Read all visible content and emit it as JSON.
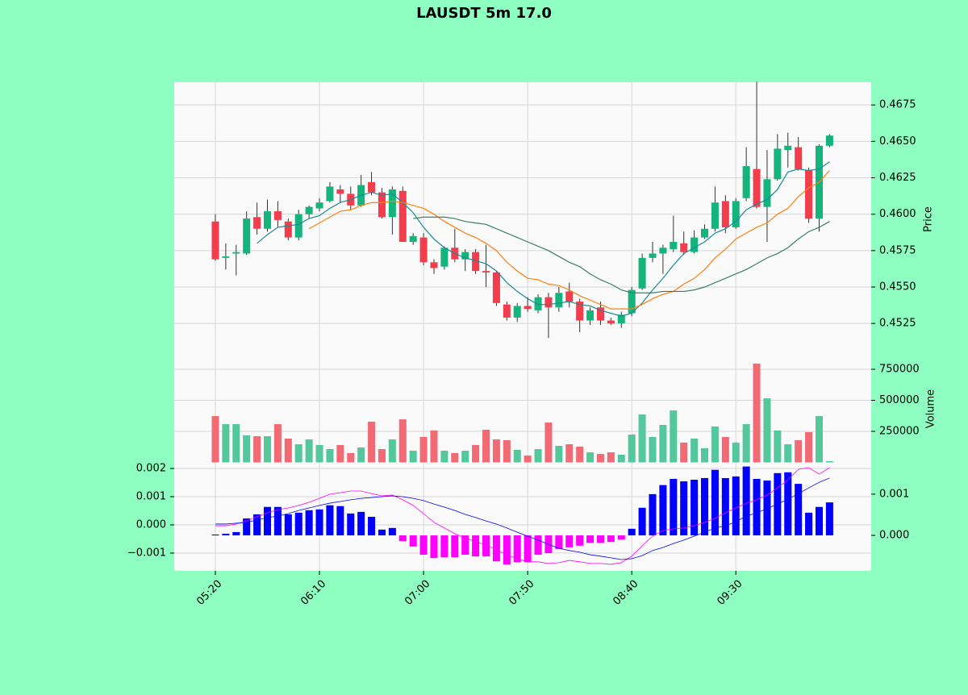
{
  "chart_data": [
    {
      "type": "candlestick",
      "title": "LAUSDT 5m 17.0",
      "ylabel": "Price",
      "categories": [
        "05:20",
        null,
        null,
        null,
        null,
        null,
        null,
        null,
        null,
        null,
        "06:10",
        null,
        null,
        null,
        null,
        null,
        null,
        null,
        null,
        null,
        "07:00",
        null,
        null,
        null,
        null,
        null,
        null,
        null,
        null,
        null,
        "07:50",
        null,
        null,
        null,
        null,
        null,
        null,
        null,
        null,
        null,
        "08:40",
        null,
        null,
        null,
        null,
        null,
        null,
        null,
        null,
        null,
        "09:30",
        null,
        null,
        null,
        null,
        null,
        null,
        null,
        null,
        null
      ],
      "xlim": [
        -3.95,
        63
      ],
      "open": [
        0.4595,
        0.457,
        0.4573,
        0.4573,
        0.4598,
        0.459,
        0.4602,
        0.4595,
        0.4584,
        0.46,
        0.4604,
        0.4609,
        0.4617,
        0.4614,
        0.4606,
        0.4622,
        0.4615,
        0.4598,
        0.4616,
        0.4581,
        0.4584,
        0.4567,
        0.4564,
        0.4577,
        0.4569,
        0.4574,
        0.4561,
        0.456,
        0.4538,
        0.4529,
        0.4537,
        0.4534,
        0.4543,
        0.4536,
        0.4547,
        0.454,
        0.4527,
        0.4536,
        0.4527,
        0.4525,
        0.4532,
        0.4549,
        0.457,
        0.4573,
        0.4576,
        0.458,
        0.4574,
        0.4584,
        0.459,
        0.4609,
        0.4591,
        0.4611,
        0.4631,
        0.4605,
        0.4624,
        0.4644,
        0.4646,
        0.463,
        0.4597,
        0.4647
      ],
      "high": [
        0.46,
        0.458,
        0.4579,
        0.4602,
        0.4608,
        0.461,
        0.4609,
        0.4597,
        0.4603,
        0.4606,
        0.4611,
        0.4622,
        0.462,
        0.4619,
        0.4627,
        0.4629,
        0.4618,
        0.4619,
        0.4619,
        0.4587,
        0.4587,
        0.4569,
        0.4578,
        0.459,
        0.4576,
        0.4576,
        0.4579,
        0.4561,
        0.454,
        0.4539,
        0.4543,
        0.4545,
        0.4546,
        0.455,
        0.4553,
        0.4542,
        0.4536,
        0.454,
        0.4529,
        0.4533,
        0.455,
        0.4573,
        0.4581,
        0.4579,
        0.4599,
        0.4588,
        0.4589,
        0.4593,
        0.4619,
        0.4613,
        0.4611,
        0.4646,
        0.4691,
        0.4644,
        0.4655,
        0.4656,
        0.4653,
        0.4632,
        0.4648,
        0.4655
      ],
      "low": [
        0.4568,
        0.4562,
        0.4558,
        0.4572,
        0.4586,
        0.4588,
        0.4591,
        0.4582,
        0.4582,
        0.4597,
        0.4602,
        0.4608,
        0.4608,
        0.4603,
        0.4605,
        0.4613,
        0.4597,
        0.4586,
        0.4581,
        0.4579,
        0.4565,
        0.4559,
        0.4562,
        0.4567,
        0.4561,
        0.4559,
        0.455,
        0.4537,
        0.4527,
        0.4526,
        0.4533,
        0.4532,
        0.4515,
        0.4533,
        0.4536,
        0.4519,
        0.4524,
        0.4524,
        0.4524,
        0.4522,
        0.453,
        0.4548,
        0.4567,
        0.4559,
        0.4574,
        0.4572,
        0.4573,
        0.4583,
        0.4588,
        0.4587,
        0.459,
        0.4609,
        0.4604,
        0.4581,
        0.4623,
        0.4632,
        0.463,
        0.4594,
        0.4588,
        0.4646
      ],
      "close": [
        0.4569,
        0.4571,
        0.4574,
        0.4597,
        0.459,
        0.4602,
        0.4596,
        0.4584,
        0.46,
        0.4605,
        0.4608,
        0.4619,
        0.4614,
        0.4606,
        0.462,
        0.4615,
        0.4598,
        0.4617,
        0.4581,
        0.4585,
        0.4567,
        0.4563,
        0.4577,
        0.4569,
        0.4574,
        0.4561,
        0.456,
        0.4539,
        0.4529,
        0.4537,
        0.4535,
        0.4543,
        0.4536,
        0.4546,
        0.454,
        0.4527,
        0.4534,
        0.4527,
        0.4525,
        0.4531,
        0.4548,
        0.457,
        0.4573,
        0.4577,
        0.4581,
        0.4574,
        0.4584,
        0.459,
        0.4608,
        0.4591,
        0.4609,
        0.4633,
        0.4605,
        0.4624,
        0.4645,
        0.4647,
        0.4631,
        0.4597,
        0.4647,
        0.4654
      ],
      "up_color": "#16b47d",
      "down_color": "#f23d4c",
      "ylim": [
        0.45035,
        0.46906
      ],
      "yticks": [
        0.4525,
        {
          "value": 0.455,
          "label": "0.4550"
        },
        0.4575,
        {
          "value": 0.46,
          "label": "0.4600"
        },
        0.4625,
        {
          "value": 0.465,
          "label": "0.4650"
        },
        0.4675
      ],
      "grid": true,
      "series": [
        {
          "color": "#1a8a96",
          "values": [
            null,
            null,
            null,
            null,
            0.458,
            0.4586,
            0.4591,
            0.4592,
            0.4593,
            0.4597,
            0.4599,
            0.4604,
            0.4608,
            0.461,
            0.4613,
            0.4615,
            0.4613,
            0.4614,
            0.4608,
            0.4601,
            0.4591,
            0.4583,
            0.4577,
            0.4573,
            0.457,
            0.4568,
            0.4566,
            0.4561,
            0.4553,
            0.4547,
            0.4542,
            0.4538,
            0.4538,
            0.4539,
            0.454,
            0.4538,
            0.4537,
            0.4534,
            0.4532,
            0.453,
            0.4532,
            0.4539,
            0.4548,
            0.4556,
            0.4565,
            0.4573,
            0.4577,
            0.4581,
            0.4587,
            0.459,
            0.4595,
            0.4603,
            0.4607,
            0.461,
            0.4617,
            0.4629,
            0.4631,
            0.463,
            0.4631,
            0.4636
          ]
        },
        {
          "color": "#ff7f0e",
          "values": [
            null,
            null,
            null,
            null,
            null,
            null,
            null,
            null,
            null,
            0.459,
            0.4594,
            0.4598,
            0.4602,
            0.4603,
            0.4606,
            0.4608,
            0.4608,
            0.4609,
            0.4608,
            0.4606,
            0.4604,
            0.46,
            0.4595,
            0.4591,
            0.4587,
            0.4584,
            0.458,
            0.4575,
            0.4567,
            0.4561,
            0.4556,
            0.4555,
            0.4552,
            0.4551,
            0.4548,
            0.4544,
            0.4541,
            0.4538,
            0.4535,
            0.4535,
            0.4535,
            0.4538,
            0.4542,
            0.4545,
            0.4547,
            0.4552,
            0.4556,
            0.4562,
            0.457,
            0.4576,
            0.4583,
            0.4587,
            0.4591,
            0.4594,
            0.46,
            0.4604,
            0.4612,
            0.4618,
            0.4622,
            0.463
          ]
        },
        {
          "color": "#3a8060",
          "values": [
            null,
            null,
            null,
            null,
            null,
            null,
            null,
            null,
            null,
            null,
            null,
            null,
            null,
            null,
            null,
            null,
            null,
            null,
            null,
            0.4597,
            0.4598,
            0.4598,
            0.4598,
            0.4597,
            0.4595,
            0.4594,
            0.4593,
            0.459,
            0.4587,
            0.4584,
            0.4581,
            0.4578,
            0.4575,
            0.4571,
            0.4567,
            0.4564,
            0.4559,
            0.4555,
            0.4552,
            0.4548,
            0.4546,
            0.4546,
            0.4546,
            0.4547,
            0.4547,
            0.4547,
            0.4548,
            0.455,
            0.4553,
            0.4556,
            0.4559,
            0.4562,
            0.4566,
            0.457,
            0.4573,
            0.4577,
            0.4583,
            0.4588,
            0.4591,
            0.4595
          ]
        }
      ]
    },
    {
      "type": "bar",
      "ylabel": "Volume",
      "values": [
        373000,
        308000,
        308000,
        218000,
        211000,
        211000,
        308000,
        192000,
        146000,
        185000,
        140000,
        107000,
        140000,
        75000,
        120000,
        328000,
        107000,
        185000,
        347000,
        94000,
        205000,
        257000,
        94000,
        75000,
        94000,
        140000,
        263000,
        185000,
        179000,
        101000,
        55000,
        107000,
        321000,
        133000,
        146000,
        127000,
        81000,
        68000,
        81000,
        62000,
        224000,
        386000,
        205000,
        302000,
        419000,
        159000,
        192000,
        114000,
        289000,
        205000,
        159000,
        308000,
        796000,
        516000,
        257000,
        146000,
        179000,
        244000,
        373000,
        10000
      ],
      "up_color": "#55c79d",
      "down_color": "#f26a74",
      "ylim": [
        0,
        867000
      ],
      "yticks": [
        250000,
        500000,
        750000
      ],
      "grid": true
    },
    {
      "type": "macd",
      "series": [
        {
          "color": "#ff00ff",
          "values": [
            -3e-05,
            -3e-05,
            3e-05,
            0.00014,
            0.00029,
            0.00043,
            0.00054,
            0.0006,
            0.00069,
            0.0008,
            0.00094,
            0.00109,
            0.00114,
            0.0012,
            0.0012,
            0.00111,
            0.00103,
            0.00106,
            0.00089,
            0.00069,
            0.0004,
            9e-05,
            -0.00011,
            -0.00031,
            -0.00046,
            -0.0006,
            -0.00071,
            -0.00089,
            -0.00106,
            -0.0012,
            -0.00131,
            -0.00131,
            -0.00137,
            -0.00134,
            -0.00126,
            -0.00131,
            -0.00137,
            -0.00137,
            -0.0014,
            -0.00134,
            -0.00111,
            -0.00074,
            -0.0004,
            -0.0002,
            -0.00014,
            -0.00011,
            -3e-05,
            9e-05,
            0.00023,
            0.00043,
            0.0006,
            0.00077,
            0.00089,
            0.00106,
            0.00131,
            0.0016,
            0.00197,
            0.00203,
            0.0018,
            0.00203
          ]
        },
        {
          "color": "#0000ff",
          "values": [
            3e-05,
            3e-05,
            6e-05,
            9e-05,
            0.00017,
            0.00026,
            0.00031,
            0.0004,
            0.00051,
            0.0006,
            0.00069,
            0.00077,
            0.00083,
            0.00089,
            0.00094,
            0.00097,
            0.001,
            0.00103,
            0.001,
            0.00094,
            0.00086,
            0.00074,
            0.00063,
            0.00051,
            0.00037,
            0.00026,
            0.00014,
            3e-05,
            -0.00011,
            -0.00026,
            -0.0004,
            -0.00054,
            -0.00069,
            -0.00083,
            -0.00091,
            -0.00097,
            -0.00106,
            -0.00111,
            -0.00117,
            -0.00123,
            -0.0012,
            -0.00109,
            -0.00091,
            -0.0008,
            -0.00066,
            -0.00054,
            -0.0004,
            -0.00026,
            -0.00011,
            -3e-05,
            0.00011,
            0.00031,
            0.00043,
            0.00057,
            0.00074,
            0.00091,
            0.00111,
            0.00131,
            0.00151,
            0.00166
          ]
        }
      ],
      "histogram": {
        "axis": "y2",
        "pos_color": "#0000ff",
        "neg_color": "#ff00ff",
        "values": [
          2e-05,
          4e-05,
          8e-05,
          0.00041,
          0.00051,
          0.00069,
          0.00069,
          0.00051,
          0.00055,
          0.00061,
          0.00063,
          0.00073,
          0.00071,
          0.00053,
          0.00057,
          0.00045,
          0.00014,
          0.00018,
          -0.00014,
          -0.00027,
          -0.00047,
          -0.00055,
          -0.00053,
          -0.00053,
          -0.00047,
          -0.00051,
          -0.00051,
          -0.00063,
          -0.00071,
          -0.00065,
          -0.00065,
          -0.00047,
          -0.00043,
          -0.00033,
          -0.00029,
          -0.00025,
          -0.00018,
          -0.00018,
          -0.00016,
          -0.0001,
          0.00016,
          0.00067,
          0.001,
          0.00122,
          0.00137,
          0.00131,
          0.00135,
          0.00139,
          0.00159,
          0.00139,
          0.00143,
          0.00167,
          0.00137,
          0.00133,
          0.00151,
          0.00153,
          0.00125,
          0.00055,
          0.00069,
          0.0008
        ]
      },
      "ylim": [
        -0.00163,
        0.00223
      ],
      "yticks": [
        {
          "value": -0.001,
          "label": "−0.001"
        },
        {
          "value": 0,
          "label": "0.000"
        },
        0.001,
        0.002
      ],
      "y2lim": [
        -0.00086,
        0.00178
      ],
      "y2ticks": [
        {
          "value": 0,
          "label": "0.000"
        },
        0.001
      ],
      "grid": true
    }
  ]
}
